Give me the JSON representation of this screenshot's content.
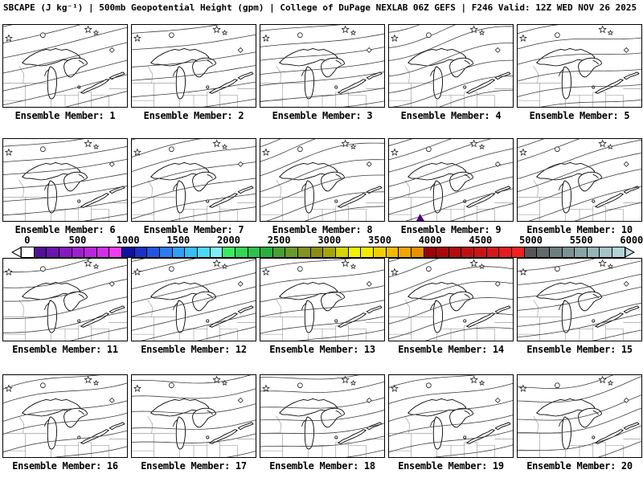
{
  "title": {
    "text": "SBCAPE (J kg⁻¹) | 500mb Geopotential Height (gpm) | College of DuPage NEXLAB 06Z GEFS | F246 Valid: 12Z WED NOV 26 2025"
  },
  "panels": {
    "rows": 4,
    "cols": 5,
    "members": [
      {
        "label": "Ensemble Member: 1"
      },
      {
        "label": "Ensemble Member: 2"
      },
      {
        "label": "Ensemble Member: 3"
      },
      {
        "label": "Ensemble Member: 4"
      },
      {
        "label": "Ensemble Member: 5"
      },
      {
        "label": "Ensemble Member: 6"
      },
      {
        "label": "Ensemble Member: 7"
      },
      {
        "label": "Ensemble Member: 8"
      },
      {
        "label": "Ensemble Member: 9"
      },
      {
        "label": "Ensemble Member: 10"
      },
      {
        "label": "Ensemble Member: 11"
      },
      {
        "label": "Ensemble Member: 12"
      },
      {
        "label": "Ensemble Member: 13"
      },
      {
        "label": "Ensemble Member: 14"
      },
      {
        "label": "Ensemble Member: 15"
      },
      {
        "label": "Ensemble Member: 16"
      },
      {
        "label": "Ensemble Member: 17"
      },
      {
        "label": "Ensemble Member: 18"
      },
      {
        "label": "Ensemble Member: 19"
      },
      {
        "label": "Ensemble Member: 20"
      }
    ]
  },
  "colorbar": {
    "tick_labels": [
      "0",
      "500",
      "1000",
      "1500",
      "2000",
      "2500",
      "3000",
      "3500",
      "4000",
      "4500",
      "5000",
      "5500",
      "6000"
    ],
    "range": [
      0,
      6000
    ],
    "left_arrow_color": "#ffffff",
    "right_arrow_color": "#bfdcde",
    "cell_colors": [
      "#ffffff",
      "#500f96",
      "#6b14ae",
      "#8519be",
      "#9e1fcd",
      "#b826db",
      "#d12ee8",
      "#f03cf0",
      "#10109e",
      "#1931c8",
      "#2355e0",
      "#2d7bf0",
      "#2f9ff5",
      "#38bef5",
      "#4fd9f7",
      "#7fedf8",
      "#3be963",
      "#33d555",
      "#2dc24b",
      "#28ae41",
      "#47a035",
      "#689a2b",
      "#849221",
      "#8f8c16",
      "#a6a40c",
      "#d6d403",
      "#f2f200",
      "#f4e800",
      "#f2ce00",
      "#f1ba00",
      "#f0a500",
      "#ea8f00",
      "#9e0303",
      "#a80808",
      "#b20c0c",
      "#bd1010",
      "#c91414",
      "#d61818",
      "#e41c1c",
      "#f02020",
      "#565656",
      "#636a6c",
      "#707e80",
      "#7d9294",
      "#8aa4a6",
      "#97b4b6",
      "#a5c4c6",
      "#b2d2d4"
    ]
  },
  "annotations": {
    "member9_patch": {
      "member": 9,
      "color": "#4b0082"
    }
  }
}
